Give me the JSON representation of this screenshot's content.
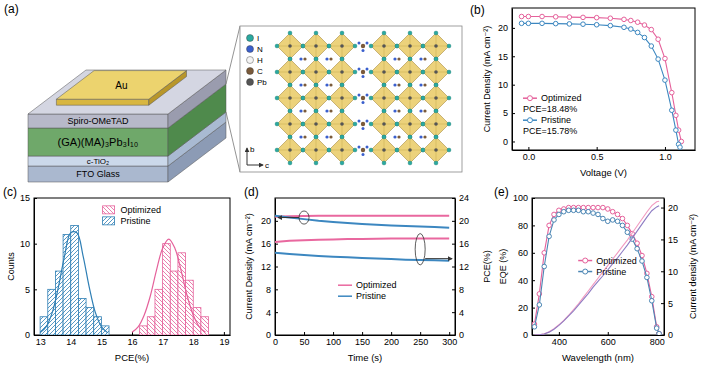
{
  "schematic": {
    "panel": "(a)",
    "layers": [
      "Au",
      "Spiro-OMeTAD",
      "(GA)(MA)₃Pb₃I₁₀",
      "c-TiO₂",
      "FTO Glass"
    ],
    "legend": [
      "I",
      "N",
      "H",
      "C",
      "Pb"
    ],
    "axes": [
      "b",
      "c"
    ]
  },
  "chart_data": [
    {
      "panel": "(b)",
      "type": "line",
      "x_label": "Voltage (V)",
      "y_label": "Current Density (mA cm⁻²)",
      "xlim": [
        -0.12,
        1.22
      ],
      "xticks": [
        {
          "value": 0,
          "label": "0.0"
        },
        0.5,
        {
          "value": 1,
          "label": "1.0"
        }
      ],
      "ylim": [
        -1.5,
        23.5
      ],
      "yticks": [
        0,
        5,
        10,
        15,
        20
      ],
      "legend": "lower left",
      "marker": "circle",
      "series": [
        {
          "name": "Optimized",
          "color": "#e5619b",
          "annotation": "PCE=18.48%",
          "x": [
            -0.05,
            0,
            0.1,
            0.2,
            0.3,
            0.4,
            0.5,
            0.6,
            0.7,
            0.75,
            0.8,
            0.85,
            0.9,
            0.95,
            1.0,
            1.05,
            1.08,
            1.1,
            1.12
          ],
          "values": [
            22.0,
            22.0,
            22.0,
            21.95,
            21.9,
            21.85,
            21.8,
            21.7,
            21.5,
            21.3,
            21.0,
            20.5,
            19.7,
            18.0,
            14.6,
            8.6,
            4.6,
            2.0,
            0
          ]
        },
        {
          "name": "Pristine",
          "color": "#3c87c0",
          "annotation": "PCE=15.78%",
          "x": [
            -0.05,
            0,
            0.1,
            0.2,
            0.3,
            0.4,
            0.5,
            0.6,
            0.7,
            0.75,
            0.8,
            0.85,
            0.9,
            0.95,
            1.0,
            1.05,
            1.08,
            1.1,
            1.11
          ],
          "values": [
            20.8,
            20.8,
            20.8,
            20.75,
            20.7,
            20.65,
            20.55,
            20.4,
            20.1,
            19.8,
            19.2,
            18.3,
            16.8,
            14.5,
            10.8,
            5.5,
            2.0,
            -0.5,
            -1.0
          ]
        }
      ]
    },
    {
      "panel": "(c)",
      "type": "histogram",
      "x_label": "PCE(%)",
      "y_label": "Counts",
      "xlim": [
        12.8,
        19.2
      ],
      "xticks": [
        13,
        14,
        15,
        16,
        17,
        18,
        19
      ],
      "ylim": [
        0,
        15
      ],
      "yticks": [
        0,
        5,
        10,
        15
      ],
      "legend": "upper center",
      "series": [
        {
          "name": "Optimized",
          "color": "#e5619b",
          "bins": [
            16.25,
            16.5,
            16.75,
            17,
            17.25,
            17.5,
            17.75,
            18,
            18.25,
            18.5
          ],
          "values": [
            1,
            2,
            5,
            10,
            7,
            9,
            6,
            3,
            2
          ],
          "fit": {
            "x": [
              16,
              16.2,
              16.4,
              16.6,
              16.8,
              17,
              17.2,
              17.4,
              17.6,
              17.8,
              18,
              18.2,
              18.4
            ],
            "values": [
              0.3,
              0.9,
              2.2,
              4.3,
              7.1,
              9.5,
              10.5,
              9.5,
              7.1,
              4.3,
              2.2,
              0.9,
              0.3
            ]
          }
        },
        {
          "name": "Pristine",
          "color": "#2f7fb5",
          "bins": [
            13,
            13.25,
            13.5,
            13.75,
            14,
            14.25,
            14.5,
            14.75,
            15,
            15.25
          ],
          "values": [
            2,
            5,
            7,
            11,
            12,
            4,
            3,
            2,
            1
          ],
          "fit": {
            "x": [
              13,
              13.2,
              13.4,
              13.6,
              13.8,
              14,
              14.2,
              14.4,
              14.6,
              14.8,
              15,
              15.2
            ],
            "values": [
              0.26,
              0.92,
              2.5,
              5.3,
              8.7,
              11.2,
              11.2,
              8.7,
              5.3,
              2.5,
              0.92,
              0.26
            ]
          }
        }
      ]
    },
    {
      "panel": "(d)",
      "type": "line",
      "x_label": "Time (s)",
      "y_label": "Current Density (mA cm⁻²)",
      "y2_label": "PCE(%)",
      "xlim": [
        0,
        310
      ],
      "xticks": [
        0,
        50,
        100,
        150,
        200,
        250,
        300
      ],
      "ylim": [
        0,
        24
      ],
      "yticks": [
        0,
        4,
        8,
        12,
        16,
        20
      ],
      "y2lim": [
        0,
        24
      ],
      "y2ticks": [
        0,
        4,
        8,
        12,
        16,
        20,
        24
      ],
      "legend": "lower center",
      "x": [
        0,
        25,
        50,
        75,
        100,
        125,
        150,
        175,
        200,
        225,
        250,
        275,
        300
      ],
      "series": [
        {
          "name": "Optimized",
          "color": "#e9689f",
          "values": [
            20.7,
            20.8,
            20.85,
            20.9,
            20.9,
            20.9,
            20.9,
            20.9,
            20.9,
            20.9,
            20.9,
            20.9,
            20.9
          ]
        },
        {
          "name": "Pristine",
          "color": "#3c87c0",
          "values": [
            20.9,
            20.6,
            20.3,
            20.0,
            19.8,
            19.6,
            19.45,
            19.3,
            19.2,
            19.1,
            19.0,
            18.9,
            18.8
          ]
        },
        {
          "name": "Optimized",
          "color": "#e9689f",
          "axis": "y2",
          "values": [
            16.3,
            16.5,
            16.6,
            16.7,
            16.75,
            16.8,
            16.8,
            16.85,
            16.9,
            16.9,
            16.9,
            16.9,
            16.9
          ]
        },
        {
          "name": "Pristine",
          "color": "#3c87c0",
          "axis": "y2",
          "values": [
            14.4,
            14.2,
            14.0,
            13.85,
            13.7,
            13.6,
            13.5,
            13.4,
            13.3,
            13.2,
            13.15,
            13.1,
            13.0
          ]
        }
      ]
    },
    {
      "panel": "(e)",
      "type": "line",
      "x_label": "Wavelength (nm)",
      "y_label": "EQE (%)",
      "y2_label": "Current density (mA cm⁻²)",
      "xlim": [
        290,
        830
      ],
      "xticks": [
        400,
        600,
        800
      ],
      "ylim": [
        0,
        100
      ],
      "yticks": [
        0,
        20,
        40,
        60,
        80,
        100
      ],
      "y2lim": [
        0,
        21.5
      ],
      "y2ticks": [
        0,
        5,
        10,
        15,
        20
      ],
      "legend": "center",
      "x": [
        300,
        320,
        340,
        360,
        380,
        400,
        420,
        440,
        460,
        480,
        500,
        520,
        540,
        560,
        580,
        600,
        620,
        640,
        660,
        680,
        700,
        720,
        740,
        760,
        780,
        800,
        810
      ],
      "series": [
        {
          "name": "Optimized",
          "color": "#e5619b",
          "marker": "circle",
          "values": [
            8,
            30,
            60,
            80,
            88,
            91,
            92,
            93,
            93,
            93,
            93,
            93,
            93,
            93,
            93,
            92,
            90,
            88,
            85,
            80,
            74,
            67,
            58,
            45,
            28,
            6,
            1
          ]
        },
        {
          "name": "Pristine",
          "color": "#4b86b4",
          "marker": "circle",
          "values": [
            6,
            22,
            50,
            72,
            84,
            88,
            90,
            91,
            91,
            91,
            90,
            90,
            89,
            88,
            85,
            83,
            84,
            83,
            80,
            75,
            70,
            63,
            54,
            42,
            25,
            5,
            1
          ]
        },
        {
          "name": "Optimized",
          "color": "#f29ac0",
          "axis": "y2",
          "values": [
            0,
            0.05,
            0.2,
            0.5,
            1.0,
            1.6,
            2.3,
            3.1,
            4.0,
            4.9,
            5.9,
            6.9,
            7.9,
            8.9,
            9.9,
            10.9,
            11.9,
            12.9,
            13.9,
            14.9,
            16.0,
            17.1,
            18.2,
            19.3,
            20.3,
            20.9,
            21.0
          ]
        },
        {
          "name": "Pristine",
          "color": "#8e7cc3",
          "axis": "y2",
          "values": [
            0,
            0.05,
            0.15,
            0.45,
            0.9,
            1.5,
            2.2,
            3.0,
            3.8,
            4.7,
            5.6,
            6.5,
            7.5,
            8.4,
            9.3,
            10.2,
            11.2,
            12.1,
            13.1,
            14.1,
            15.2,
            16.3,
            17.4,
            18.5,
            19.5,
            20.1,
            20.3
          ]
        }
      ]
    }
  ]
}
